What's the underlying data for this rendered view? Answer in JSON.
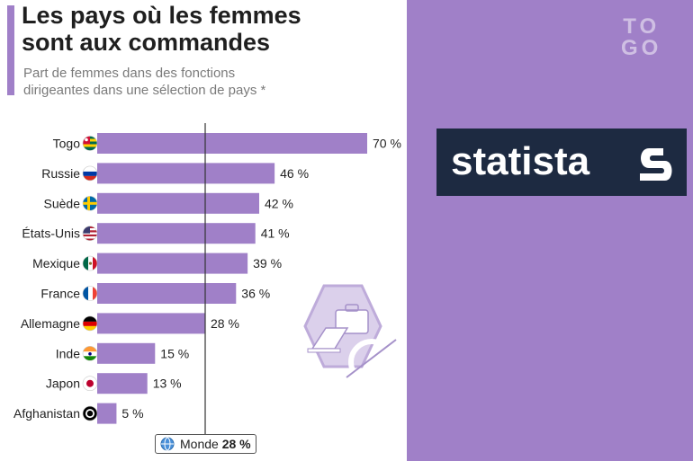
{
  "header": {
    "title_line1": "Les pays où les femmes",
    "title_line2": "sont aux commandes",
    "subtitle_line1": "Part de femmes dans des fonctions",
    "subtitle_line2": "dirigeantes dans une sélection de pays *"
  },
  "brand": {
    "watermark_line1": "TO",
    "watermark_line2": "GO",
    "logo_text": "statista"
  },
  "world": {
    "label": "Monde",
    "value_label": "28 %"
  },
  "colors": {
    "bar": "#a080c8",
    "accent": "#a080c8",
    "right_panel": "#a080c8",
    "statista_bg": "#1d2a41"
  },
  "chart_data": {
    "type": "bar",
    "orientation": "horizontal",
    "categories": [
      "Togo",
      "Russie",
      "Suède",
      "États-Unis",
      "Mexique",
      "France",
      "Allemagne",
      "Inde",
      "Japon",
      "Afghanistan"
    ],
    "values": [
      70,
      46,
      42,
      41,
      39,
      36,
      28,
      15,
      13,
      5
    ],
    "value_labels": [
      "70 %",
      "46 %",
      "42 %",
      "41 %",
      "39 %",
      "36 %",
      "28 %",
      "15 %",
      "13 %",
      "5 %"
    ],
    "flags": [
      "flag-togo",
      "flag-russia",
      "flag-sweden",
      "flag-usa",
      "flag-mexico",
      "flag-france",
      "flag-germany",
      "flag-india",
      "flag-japan",
      "flag-afghanistan"
    ],
    "reference_line": {
      "label": "Monde",
      "value": 28
    },
    "unit": "%",
    "title": "Les pays où les femmes sont aux commandes",
    "xlim": [
      0,
      70
    ]
  }
}
